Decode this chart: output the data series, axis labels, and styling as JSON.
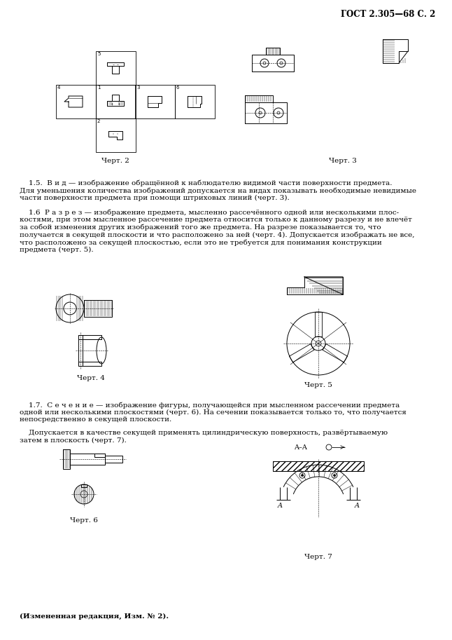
{
  "page_title": "ГОСТ 2.305—68 С. 2",
  "background": "#ffffff",
  "figsize": [
    6.46,
    9.13
  ],
  "dpi": 100,
  "chert2": "Черт. 2",
  "chert3": "Черт. 3",
  "chert4": "Черт. 4",
  "chert5": "Черт. 5",
  "chert6": "Черт. 6",
  "chert7": "Черт. 7",
  "footer": "(Измененная редакция, Изм. № 2).",
  "para_1_5": "    1.5.  В и д — изображение обращённой к наблюдателю видимой части поверхности предмета.\nДля уменьшения количества изображений допускается на видах показывать необходимые невидимые\nчасти поверхности предмета при помощи штриховых линий (черт. 3).",
  "para_1_6": "    1.6  Р а з р е з — изображение предмета, мысленно рассечённого одной или несколькими плос-\nкостями, при этом мысленное рассечение предмета относится только к данному разрезу и не влечёт\nза собой изменения других изображений того же предмета. На разрезе показывается то, что\nполучается в секущей плоскости и что расположено за ней (черт. 4). Допускается изображать не все,\nчто расположено за секущей плоскостью, если это не требуется для понимания конструкции\nпредмета (черт. 5).",
  "para_1_7a": "    1.7.  С е ч е н и е — изображение фигуры, получающейся при мысленном рассечении предмета\nодной или несколькими плоскостями (черт. 6). На сечении показывается только то, что получается\nнепосредственно в секущей плоскости.",
  "para_1_7b": "    Допускается в качестве секущей применять цилиндрическую поверхность, развёртываемую\nзатем в плоскость (черт. 7)."
}
